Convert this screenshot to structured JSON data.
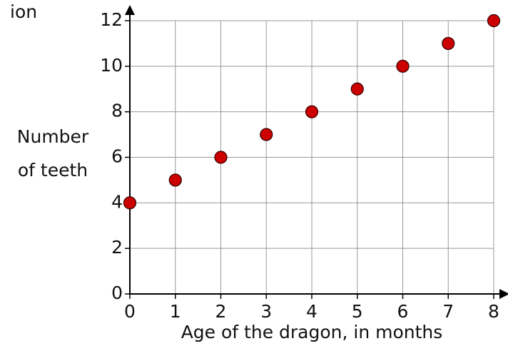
{
  "chart_data": {
    "type": "scatter",
    "annotation": "ion",
    "xlabel": "Age of the dragon, in months",
    "ylabel": [
      "Number",
      "of teeth"
    ],
    "x": [
      0,
      1,
      2,
      3,
      4,
      5,
      6,
      7,
      8
    ],
    "values": [
      4,
      5,
      6,
      7,
      8,
      9,
      10,
      11,
      12
    ],
    "color": "#cc0000",
    "xlim": [
      0,
      8
    ],
    "xticks": [
      0,
      1,
      2,
      3,
      4,
      5,
      6,
      7,
      8
    ],
    "ylim": [
      0,
      12
    ],
    "yticks": [
      0,
      2,
      4,
      6,
      8,
      10,
      12
    ],
    "grid": true
  }
}
